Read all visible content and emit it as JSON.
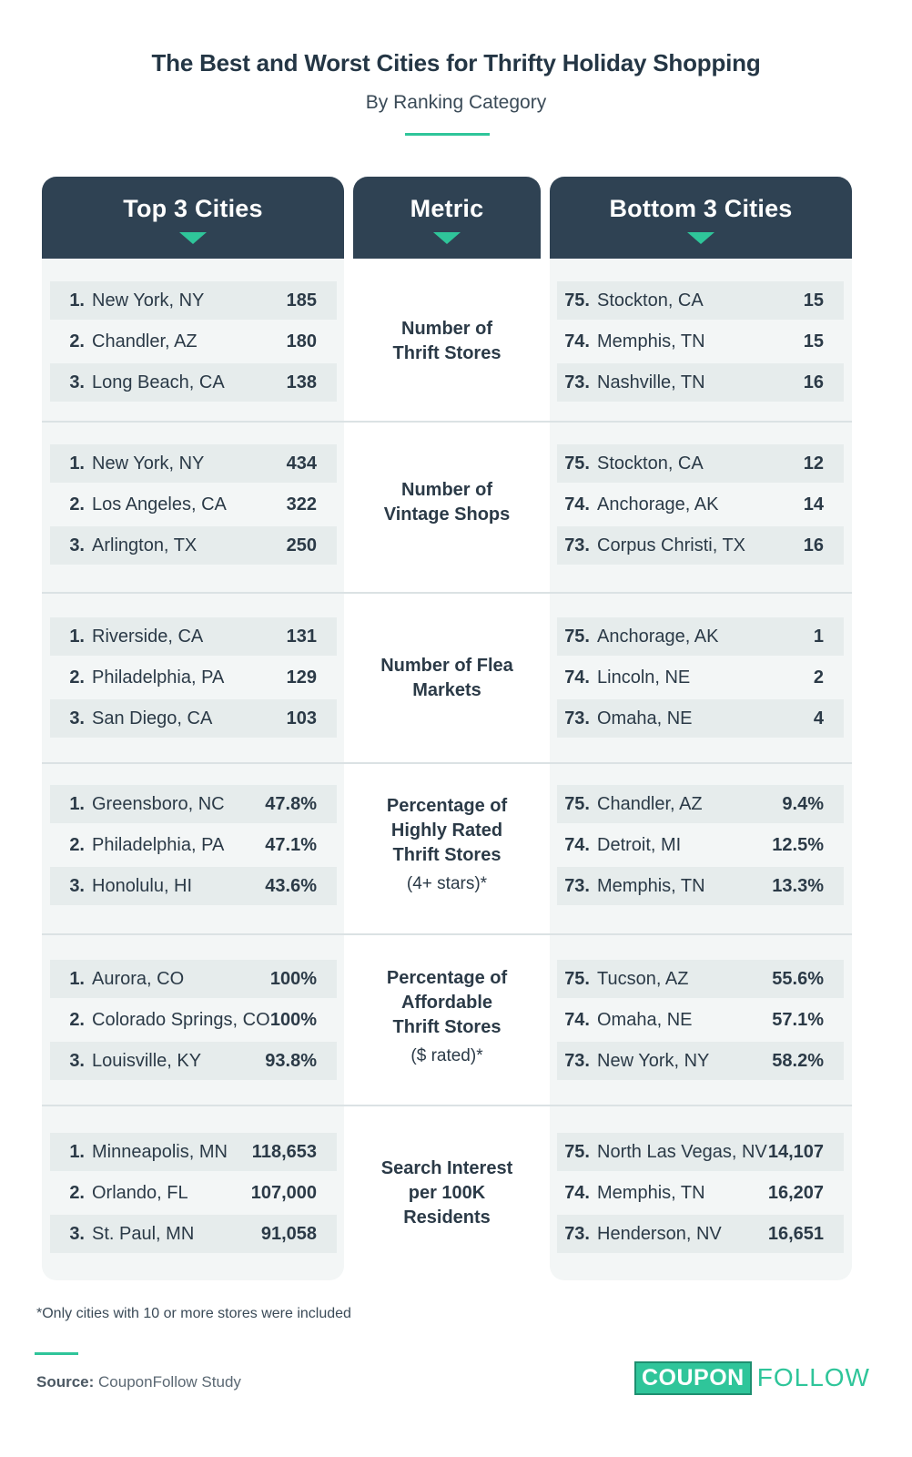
{
  "header": {
    "title": "The Best and Worst Cities for Thrifty Holiday Shopping",
    "subtitle": "By Ranking Category"
  },
  "columns": {
    "top": "Top 3 Cities",
    "metric": "Metric",
    "bottom": "Bottom 3 Cities"
  },
  "sections": [
    {
      "metric": "Number of Thrift Stores",
      "note": "",
      "top": [
        {
          "rank": "1.",
          "city": "New York, NY",
          "value": "185"
        },
        {
          "rank": "2.",
          "city": "Chandler, AZ",
          "value": "180"
        },
        {
          "rank": "3.",
          "city": "Long Beach, CA",
          "value": "138"
        }
      ],
      "bottom": [
        {
          "rank": "75.",
          "city": "Stockton, CA",
          "value": "15"
        },
        {
          "rank": "74.",
          "city": "Memphis, TN",
          "value": "15"
        },
        {
          "rank": "73.",
          "city": "Nashville, TN",
          "value": "16"
        }
      ]
    },
    {
      "metric": "Number of Vintage Shops",
      "note": "",
      "top": [
        {
          "rank": "1.",
          "city": "New York, NY",
          "value": "434"
        },
        {
          "rank": "2.",
          "city": "Los Angeles, CA",
          "value": "322"
        },
        {
          "rank": "3.",
          "city": "Arlington, TX",
          "value": "250"
        }
      ],
      "bottom": [
        {
          "rank": "75.",
          "city": "Stockton, CA",
          "value": "12"
        },
        {
          "rank": "74.",
          "city": "Anchorage, AK",
          "value": "14"
        },
        {
          "rank": "73.",
          "city": "Corpus Christi, TX",
          "value": "16"
        }
      ]
    },
    {
      "metric": "Number of Flea Markets",
      "note": "",
      "top": [
        {
          "rank": "1.",
          "city": "Riverside, CA",
          "value": "131"
        },
        {
          "rank": "2.",
          "city": "Philadelphia, PA",
          "value": "129"
        },
        {
          "rank": "3.",
          "city": "San Diego, CA",
          "value": "103"
        }
      ],
      "bottom": [
        {
          "rank": "75.",
          "city": "Anchorage, AK",
          "value": "1"
        },
        {
          "rank": "74.",
          "city": "Lincoln, NE",
          "value": "2"
        },
        {
          "rank": "73.",
          "city": "Omaha, NE",
          "value": "4"
        }
      ]
    },
    {
      "metric": "Percentage of Highly Rated Thrift Stores",
      "note": "(4+ stars)*",
      "top": [
        {
          "rank": "1.",
          "city": "Greensboro, NC",
          "value": "47.8%"
        },
        {
          "rank": "2.",
          "city": "Philadelphia, PA",
          "value": "47.1%"
        },
        {
          "rank": "3.",
          "city": "Honolulu, HI",
          "value": "43.6%"
        }
      ],
      "bottom": [
        {
          "rank": "75.",
          "city": "Chandler, AZ",
          "value": "9.4%"
        },
        {
          "rank": "74.",
          "city": "Detroit, MI",
          "value": "12.5%"
        },
        {
          "rank": "73.",
          "city": "Memphis, TN",
          "value": "13.3%"
        }
      ]
    },
    {
      "metric": "Percentage of Affordable Thrift Stores",
      "note": "($ rated)*",
      "top": [
        {
          "rank": "1.",
          "city": "Aurora, CO",
          "value": "100%"
        },
        {
          "rank": "2.",
          "city": "Colorado Springs, CO",
          "value": "100%"
        },
        {
          "rank": "3.",
          "city": "Louisville, KY",
          "value": "93.8%"
        }
      ],
      "bottom": [
        {
          "rank": "75.",
          "city": "Tucson, AZ",
          "value": "55.6%"
        },
        {
          "rank": "74.",
          "city": "Omaha, NE",
          "value": "57.1%"
        },
        {
          "rank": "73.",
          "city": "New York, NY",
          "value": "58.2%"
        }
      ]
    },
    {
      "metric": "Search Interest per 100K Residents",
      "note": "",
      "top": [
        {
          "rank": "1.",
          "city": "Minneapolis, MN",
          "value": "118,653"
        },
        {
          "rank": "2.",
          "city": "Orlando, FL",
          "value": "107,000"
        },
        {
          "rank": "3.",
          "city": "St. Paul, MN",
          "value": "91,058"
        }
      ],
      "bottom": [
        {
          "rank": "75.",
          "city": "North Las Vegas, NV",
          "value": "14,107"
        },
        {
          "rank": "74.",
          "city": "Memphis, TN",
          "value": "16,207"
        },
        {
          "rank": "73.",
          "city": "Henderson, NV",
          "value": "16,651"
        }
      ]
    }
  ],
  "footer": {
    "footnote": "*Only cities with 10 or more stores were included",
    "source_label": "Source:",
    "source_text": "CouponFollow Study",
    "logo_coupon": "COUPON",
    "logo_follow": "FOLLOW"
  },
  "colors": {
    "header_bg": "#2f4253",
    "accent": "#2fc59a",
    "row_shade": "#e6ecec",
    "panel_bg": "#f3f6f6"
  }
}
